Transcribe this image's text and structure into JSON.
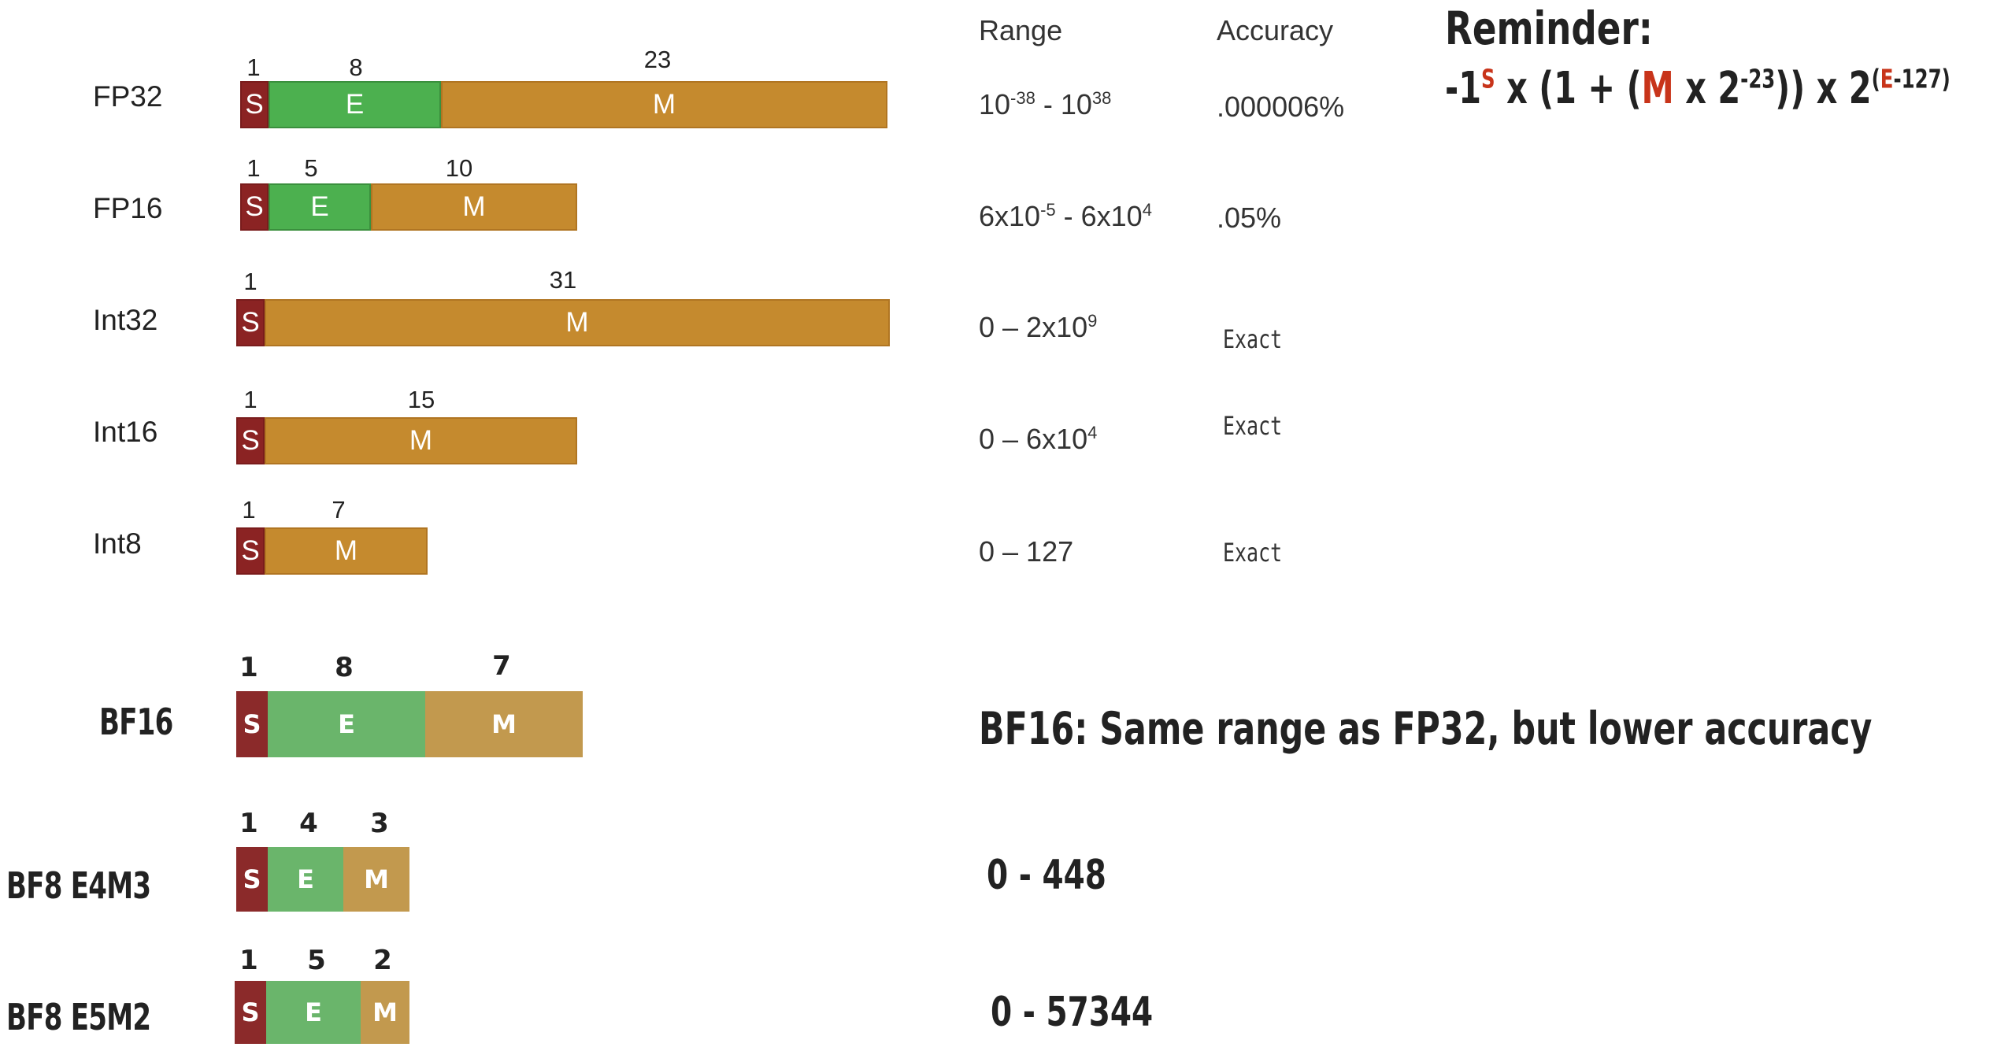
{
  "headers": {
    "range": "Range",
    "accuracy": "Accuracy"
  },
  "reminder": {
    "title": "Reminder:",
    "formula": {
      "part1": "-1",
      "sign_sup": "S",
      "part2": " x (1 + (",
      "mantissa": "M",
      "part3": " x 2",
      "exp_sup": "-23",
      "part4": ")) x 2",
      "sup_open": "(",
      "sup_e": "E",
      "sup_rest": "-127)"
    }
  },
  "formats": [
    {
      "name": "FP32",
      "segments": [
        {
          "type": "s",
          "label": "S",
          "bits": "1"
        },
        {
          "type": "e",
          "label": "E",
          "bits": "8"
        },
        {
          "type": "m",
          "label": "M",
          "bits": "23"
        }
      ],
      "range": {
        "a": "10",
        "a_sup": "-38",
        "sep": " - ",
        "b": "10",
        "b_sup": "38"
      },
      "accuracy": ".000006%"
    },
    {
      "name": "FP16",
      "segments": [
        {
          "type": "s",
          "label": "S",
          "bits": "1"
        },
        {
          "type": "e",
          "label": "E",
          "bits": "5"
        },
        {
          "type": "m",
          "label": "M",
          "bits": "10"
        }
      ],
      "range": {
        "a": "6x10",
        "a_sup": "-5",
        "sep": " - ",
        "b": "6x10",
        "b_sup": "4"
      },
      "accuracy": ".05%"
    },
    {
      "name": "Int32",
      "segments": [
        {
          "type": "s",
          "label": "S",
          "bits": "1"
        },
        {
          "type": "m",
          "label": "M",
          "bits": "31"
        }
      ],
      "range": {
        "a": "0 – 2x10",
        "a_sup": "9"
      },
      "accuracy": "Exact"
    },
    {
      "name": "Int16",
      "segments": [
        {
          "type": "s",
          "label": "S",
          "bits": "1"
        },
        {
          "type": "m",
          "label": "M",
          "bits": "15"
        }
      ],
      "range": {
        "a": "0 – 6x10",
        "a_sup": "4"
      },
      "accuracy": "Exact"
    },
    {
      "name": "Int8",
      "segments": [
        {
          "type": "s",
          "label": "S",
          "bits": "1"
        },
        {
          "type": "m",
          "label": "M",
          "bits": "7"
        }
      ],
      "range": {
        "a": "0 – 127"
      },
      "accuracy": "Exact"
    },
    {
      "name": "BF16",
      "segments": [
        {
          "type": "s",
          "label": "S",
          "bits": "1"
        },
        {
          "type": "e",
          "label": "E",
          "bits": "8"
        },
        {
          "type": "m",
          "label": "M",
          "bits": "7"
        }
      ],
      "note": "BF16: Same range as FP32, but lower accuracy"
    },
    {
      "name": "BF8 E4M3",
      "segments": [
        {
          "type": "s",
          "label": "S",
          "bits": "1"
        },
        {
          "type": "e",
          "label": "E",
          "bits": "4"
        },
        {
          "type": "m",
          "label": "M",
          "bits": "3"
        }
      ],
      "note": "0 - 448"
    },
    {
      "name": "BF8 E5M2",
      "segments": [
        {
          "type": "s",
          "label": "S",
          "bits": "1"
        },
        {
          "type": "e",
          "label": "E",
          "bits": "5"
        },
        {
          "type": "m",
          "label": "M",
          "bits": "2"
        }
      ],
      "note": "0 - 57344"
    }
  ]
}
